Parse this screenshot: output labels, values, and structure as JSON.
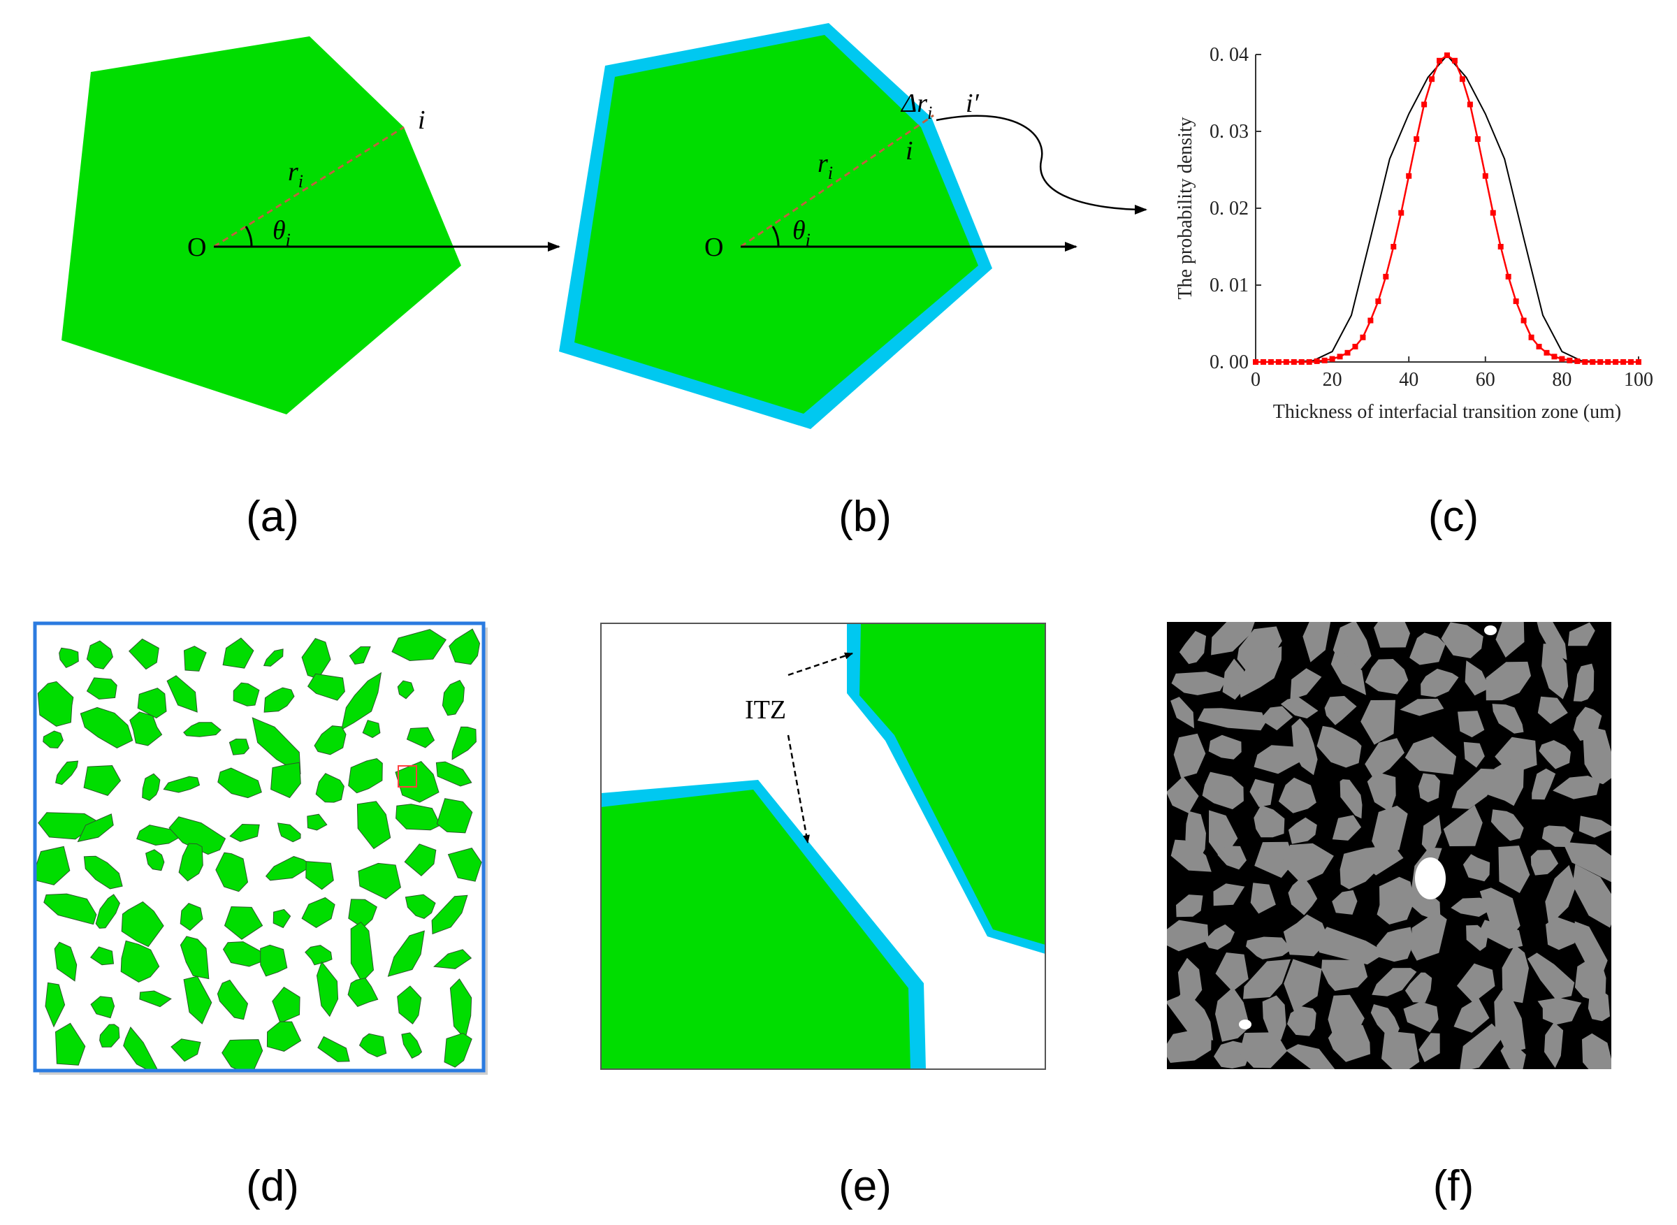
{
  "panels": {
    "a": {
      "label": "(a)",
      "origin": "O",
      "radius": "r",
      "radius_sub": "i",
      "angle": "θ",
      "angle_sub": "i",
      "vertex": "i"
    },
    "b": {
      "label": "(b)",
      "origin": "O",
      "radius": "r",
      "radius_sub": "i",
      "angle": "θ",
      "angle_sub": "i",
      "vertex_inner": "i",
      "vertex_outer": "i′",
      "delta": "Δr",
      "delta_sub": "i"
    },
    "c": {
      "label": "(c)"
    },
    "d": {
      "label": "(d)"
    },
    "e": {
      "label": "(e)",
      "callout": "ITZ"
    },
    "f": {
      "label": "(f)"
    }
  },
  "chart_data": {
    "type": "line",
    "xlabel": "Thickness of interfacial transition zone (um)",
    "ylabel": "The probability density",
    "xlim": [
      0,
      100
    ],
    "ylim": [
      0,
      0.04
    ],
    "xticks": [
      0,
      20,
      40,
      60,
      80,
      100
    ],
    "yticks": [
      0.0,
      0.01,
      0.02,
      0.03,
      0.04
    ],
    "ytick_labels": [
      "0. 00",
      "0. 01",
      "0. 02",
      "0. 03",
      "0. 04"
    ],
    "series": [
      {
        "color": "#000000",
        "x": [
          0,
          5,
          10,
          15,
          20,
          25,
          30,
          35,
          40,
          45,
          50,
          55,
          60,
          65,
          70,
          75,
          80,
          85,
          90,
          95,
          100
        ],
        "y": [
          0.0,
          0.0,
          1e-05,
          0.00017,
          0.00135,
          0.00608,
          0.01614,
          0.02641,
          0.03227,
          0.03703,
          0.03989,
          0.03703,
          0.03227,
          0.02641,
          0.01614,
          0.00608,
          0.00135,
          0.00017,
          1e-05,
          0.0,
          0.0
        ]
      },
      {
        "color": "#ff0000",
        "marker": "square",
        "x": [
          0,
          2,
          4,
          6,
          8,
          10,
          12,
          14,
          16,
          18,
          20,
          22,
          24,
          26,
          28,
          30,
          32,
          34,
          36,
          38,
          40,
          42,
          44,
          46,
          48,
          50,
          52,
          54,
          56,
          58,
          60,
          62,
          64,
          66,
          68,
          70,
          72,
          74,
          76,
          78,
          80,
          82,
          84,
          86,
          88,
          90,
          92,
          94,
          96,
          98,
          100
        ],
        "y": [
          0.0,
          0.0,
          0.0,
          0.0,
          0.0,
          0.0,
          0.0,
          0.0,
          0.0001,
          0.0002,
          0.0004,
          0.0007,
          0.0012,
          0.002,
          0.0032,
          0.0054,
          0.0079,
          0.0111,
          0.015,
          0.0194,
          0.0242,
          0.029,
          0.0335,
          0.0368,
          0.0392,
          0.0399,
          0.0392,
          0.0368,
          0.0335,
          0.029,
          0.0242,
          0.0194,
          0.015,
          0.0111,
          0.0079,
          0.0054,
          0.0032,
          0.002,
          0.0012,
          0.0007,
          0.0004,
          0.0002,
          0.0001,
          0.0,
          0.0,
          0.0,
          0.0,
          0.0,
          0.0,
          0.0,
          0.0
        ]
      }
    ]
  },
  "colors": {
    "aggregate": "#00dd00",
    "itz": "#00c8f0",
    "radius_line": "#c06040",
    "frame_d": "#2b7be0",
    "matrix_f": "#000000",
    "grain_f": "#8c8c8c",
    "pore_f": "#ffffff"
  }
}
